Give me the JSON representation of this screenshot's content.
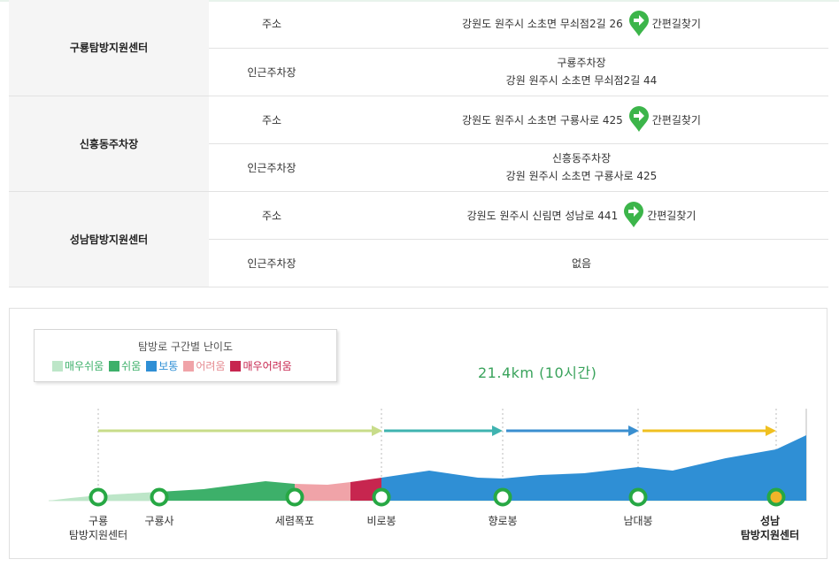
{
  "locations": [
    {
      "name": "구룡탐방지원센터",
      "address_label": "주소",
      "address": "강원도 원주시 소초면 무쇠점2길 26",
      "nav_label": "간편길찾기",
      "parking_label": "인근주차장",
      "parking_name": "구룡주차장",
      "parking_address": "강원 원주시 소초면 무쇠점2길 44"
    },
    {
      "name": "신흥동주차장",
      "address_label": "주소",
      "address": "강원도 원주시 소초면 구룡사로 425",
      "nav_label": "간편길찾기",
      "parking_label": "인근주차장",
      "parking_name": "신흥동주차장",
      "parking_address": "강원 원주시 소초면 구룡사로 425"
    },
    {
      "name": "성남탐방지원센터",
      "address_label": "주소",
      "address": "강원도 원주시 신림면 성남로 441",
      "nav_label": "간편길찾기",
      "parking_label": "인근주차장",
      "parking_name": "없음",
      "parking_address": ""
    }
  ],
  "icons": {
    "nav": "green-map-pin-arrow-icon"
  },
  "legend": {
    "title": "탐방로 구간별 난이도",
    "items": [
      {
        "label": "매우쉬움",
        "color": "#bde6c8"
      },
      {
        "label": "쉬움",
        "color": "#3db06a"
      },
      {
        "label": "보통",
        "color": "#2f8fd5"
      },
      {
        "label": "어려움",
        "color": "#f0a3a8"
      },
      {
        "label": "매우어려움",
        "color": "#c7264f"
      }
    ]
  },
  "total": "21.4km (10시간)",
  "waypoints": [
    {
      "name": "구룡",
      "sub": "탐방지원센터",
      "bold": false
    },
    {
      "name": "구룡사",
      "sub": "",
      "bold": false
    },
    {
      "name": "세렴폭포",
      "sub": "",
      "bold": false
    },
    {
      "name": "비로봉",
      "sub": "",
      "bold": false
    },
    {
      "name": "향로봉",
      "sub": "",
      "bold": false
    },
    {
      "name": "남대봉",
      "sub": "",
      "bold": false
    },
    {
      "name": "성남",
      "sub": "탐방지원센터",
      "bold": true
    }
  ],
  "colors": {
    "arrow_green": "#c8dc8a",
    "arrow_teal": "#3fb3b0",
    "arrow_blue": "#3a8fd0",
    "arrow_yellow": "#f0c020",
    "node_ring": "#27a844",
    "node_end_fill": "#f0b429"
  }
}
